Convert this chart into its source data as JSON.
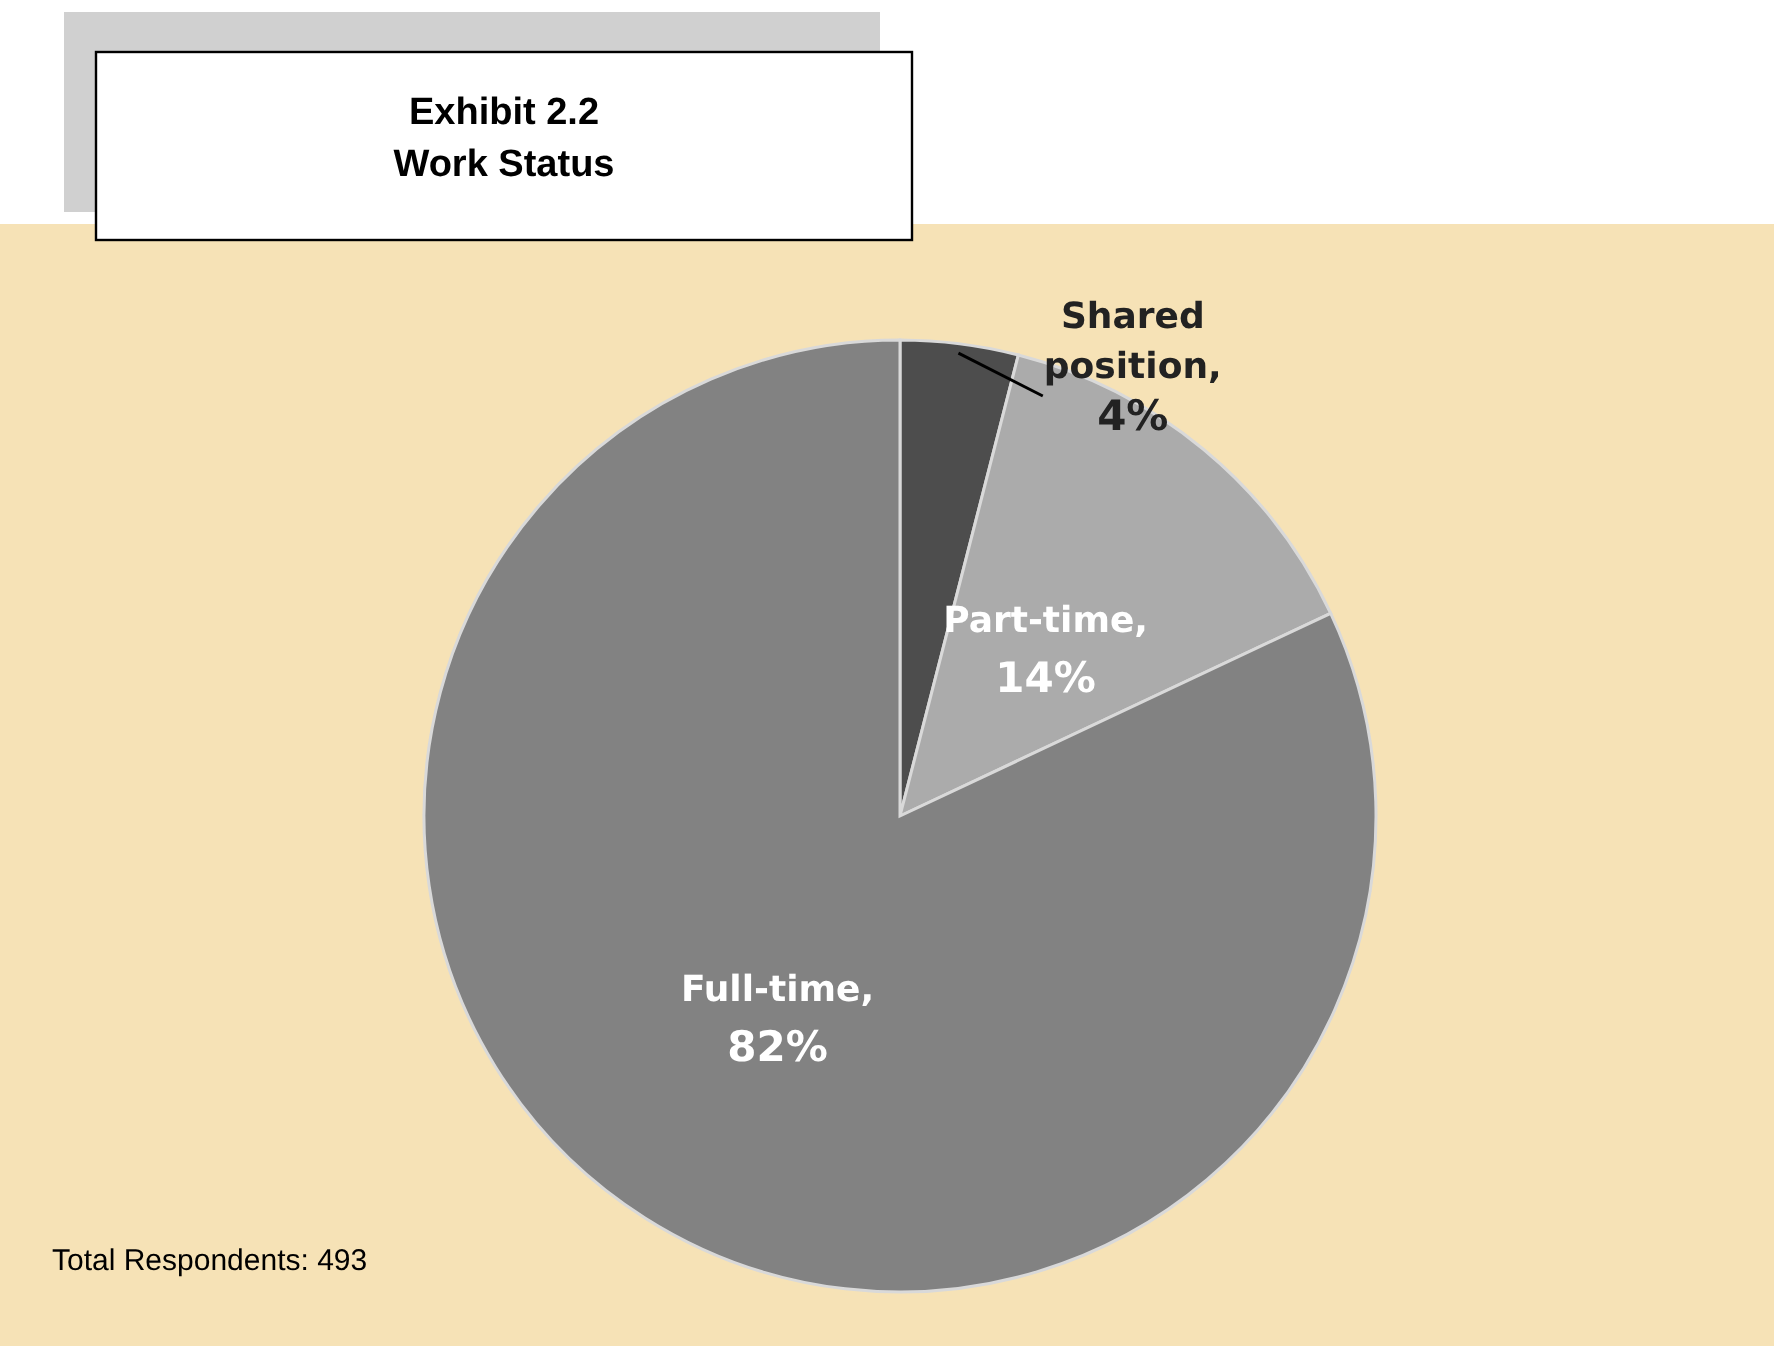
{
  "chart_data": {
    "type": "pie",
    "title": "Exhibit 2.2",
    "subtitle": "Work Status",
    "value_labels": [
      "Shared position, 4%",
      "Part-time, 14%",
      "Full-time, 82%"
    ],
    "values": [
      4,
      14,
      82
    ],
    "colors": [
      "#4d4d4d",
      "#ababab",
      "#828282"
    ],
    "annotations": [
      "Total Respondents: 493"
    ]
  }
}
